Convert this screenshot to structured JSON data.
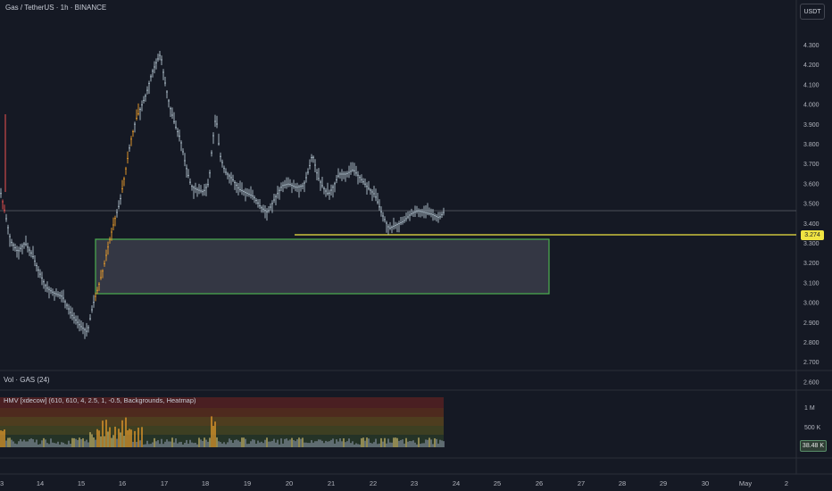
{
  "symbol_legend": "Gas / TetherUS · 1h · BINANCE",
  "currency_button": "USDT",
  "price_axis_labels": [
    "4.300",
    "4.200",
    "4.100",
    "4.000",
    "3.900",
    "3.800",
    "3.700",
    "3.600",
    "3.500",
    "3.400",
    "3.300",
    "3.200",
    "3.100",
    "3.000",
    "2.900",
    "2.800",
    "2.700",
    "2.600"
  ],
  "current_price_tag": "3.274",
  "volume_pane_label": "Vol · GAS (24)",
  "hmv_label": "HMV [xdecow] (610, 610, 4, 2.5, 1, -0.5, Backgrounds, Heatmap)",
  "volume_axis_labels": [
    "1 M",
    "500 K"
  ],
  "volume_value_tag": "38.48 K",
  "time_axis_labels": [
    "3",
    "14",
    "15",
    "16",
    "17",
    "18",
    "19",
    "20",
    "21",
    "22",
    "23",
    "24",
    "25",
    "26",
    "27",
    "28",
    "29",
    "30",
    "May",
    "2"
  ],
  "colors": {
    "background": "#151924",
    "candle": "#b2c3cf",
    "highlight_candle": "#f0a02c",
    "level_line": "#f0e442",
    "zone_border": "#4caf50",
    "zone_fill": "#3a3d4a"
  }
}
